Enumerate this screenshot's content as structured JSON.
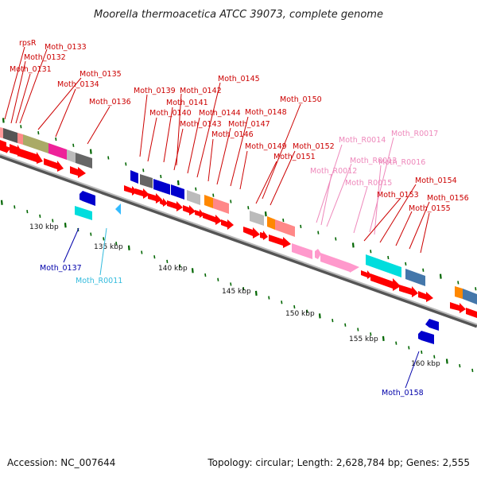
{
  "title": "Moorella thermoacetica ATCC 39073, complete genome",
  "footer": {
    "accession": "Accession: NC_007644",
    "summary": "Topology: circular; Length: 2,628,784 bp; Genes: 2,555"
  },
  "colors": {
    "red_label": "#cc0000",
    "blue_label": "#0000aa",
    "cyan_label": "#33bbdd",
    "pink_label": "#ee88bb",
    "forward_arrow": "#ff0000",
    "tick": "#006600",
    "backbone": "#888888"
  },
  "kbp_labels": [
    "130 kbp",
    "135 kbp",
    "140 kbp",
    "145 kbp",
    "150 kbp",
    "155 kbp",
    "160 kbp"
  ],
  "gene_labels": [
    "rpsR",
    "Moth_0133",
    "Moth_0132",
    "Moth_0131",
    "Moth_0135",
    "Moth_0134",
    "Moth_0136",
    "Moth_0145",
    "Moth_0139",
    "Moth_0142",
    "Moth_0141",
    "Moth_0140",
    "Moth_0144",
    "Moth_0148",
    "Moth_0143",
    "Moth_0147",
    "Moth_0150",
    "Moth_0146",
    "Moth_0149",
    "Moth_0152",
    "Moth_0151",
    "Moth_R0014",
    "Moth_R0017",
    "Moth_R0013",
    "Moth_R0016",
    "Moth_R0012",
    "Moth_R0015",
    "Moth_0154",
    "Moth_0153",
    "Moth_0156",
    "Moth_0155",
    "Moth_0137",
    "Moth_R0011",
    "Moth_0158"
  ]
}
